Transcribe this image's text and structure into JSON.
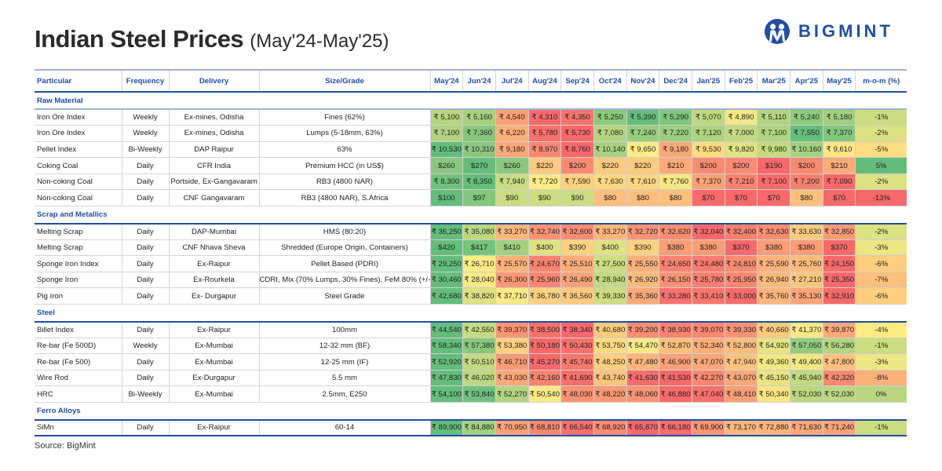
{
  "title": {
    "main": "Indian Steel Prices",
    "sub": "(May'24-May'25)"
  },
  "logo": {
    "text": "BIGMINT",
    "color": "#1f4ea3"
  },
  "colors": {
    "low": "#f8696b",
    "mid": "#ffeb84",
    "high": "#63be7b",
    "header_text": "#1f4ea3"
  },
  "columns": [
    "Particular",
    "Frequency",
    "Delivery",
    "Size/Grade",
    "May'24",
    "Jun'24",
    "Jul'24",
    "Aug'24",
    "Sep'24",
    "Oct'24",
    "Nov'24",
    "Dec'24",
    "Jan'25",
    "Feb'25",
    "Mar'25",
    "Apr'25",
    "May'25",
    "m-o-m (%)"
  ],
  "sections": [
    {
      "name": "Raw Material",
      "rows": [
        {
          "particular": "Iron Ore Index",
          "frequency": "Weekly",
          "delivery": "Ex-mines, Odisha",
          "grade": "Fines (62%)",
          "currency": "₹",
          "values": [
            5100,
            5160,
            4540,
            4310,
            4350,
            5250,
            5390,
            5290,
            5070,
            4890,
            5110,
            5240,
            5180
          ],
          "mom": -1
        },
        {
          "particular": "Iron Ore Index",
          "frequency": "Weekly",
          "delivery": "Ex-mines, Odisha",
          "grade": "Lumps (5-18mm, 63%)",
          "currency": "₹",
          "values": [
            7100,
            7360,
            6220,
            5780,
            5730,
            7080,
            7240,
            7220,
            7120,
            7000,
            7100,
            7550,
            7370
          ],
          "mom": -2
        },
        {
          "particular": "Pellet Index",
          "frequency": "Bi-Weekly",
          "delivery": "DAP Raipur",
          "grade": "63%",
          "currency": "₹",
          "values": [
            10530,
            10310,
            9180,
            8970,
            8760,
            10140,
            9650,
            9180,
            9530,
            9820,
            9980,
            10160,
            9610
          ],
          "mom": -5
        },
        {
          "particular": "Coking Coal",
          "frequency": "Daily",
          "delivery": "CFR India",
          "grade": "Premium HCC (in US$)",
          "currency": "$",
          "values": [
            260,
            270,
            260,
            220,
            200,
            220,
            220,
            210,
            200,
            200,
            190,
            200,
            210
          ],
          "mom": 5
        },
        {
          "particular": "Non-coking Coal",
          "frequency": "Daily",
          "delivery": "Portside, Ex-Gangavaram",
          "grade": "RB3 (4800 NAR)",
          "currency": "₹",
          "values": [
            8300,
            8350,
            7940,
            7720,
            7590,
            7630,
            7610,
            7760,
            7370,
            7210,
            7100,
            7200,
            7090
          ],
          "mom": -2
        },
        {
          "particular": "Non-coking Coal",
          "frequency": "Daily",
          "delivery": "CNF Gangavaram",
          "grade": "RB3 (4800 NAR), S.Africa",
          "currency": "$",
          "values": [
            100,
            97,
            90,
            90,
            90,
            80,
            80,
            80,
            70,
            70,
            70,
            80,
            70
          ],
          "mom": -13
        }
      ]
    },
    {
      "name": "Scrap and Metallics",
      "rows": [
        {
          "particular": "Melting Scrap",
          "frequency": "Daily",
          "delivery": "DAP-Mumbai",
          "grade": "HMS (80:20)",
          "currency": "₹",
          "values": [
            36250,
            35080,
            33270,
            32740,
            32600,
            33270,
            32720,
            32620,
            32040,
            32400,
            32630,
            33630,
            32850
          ],
          "mom": -2
        },
        {
          "particular": "Melting Scrap",
          "frequency": "Daily",
          "delivery": "CNF Nhava Sheva",
          "grade": "Shredded (Europe Origin, Containers)",
          "currency": "$",
          "values": [
            420,
            417,
            410,
            400,
            390,
            400,
            390,
            380,
            380,
            370,
            380,
            380,
            370
          ],
          "mom": -3
        },
        {
          "particular": "Sponge Iron Index",
          "frequency": "Daily",
          "delivery": "Ex-Raipur",
          "grade": "Pellet Based (PDRI)",
          "currency": "₹",
          "values": [
            29250,
            26710,
            25570,
            24670,
            25510,
            27500,
            25550,
            24650,
            24480,
            24810,
            25590,
            25760,
            24150
          ],
          "mom": -6
        },
        {
          "particular": "Sponge Iron",
          "frequency": "Daily",
          "delivery": "Ex-Rourkela",
          "grade": "CDRI, Mix (70% Lumps, 30% Fines), FeM 80% (+/-1)",
          "currency": "₹",
          "values": [
            30460,
            28040,
            26300,
            25960,
            26490,
            28940,
            26920,
            26150,
            25780,
            25950,
            26940,
            27210,
            25350
          ],
          "mom": -7
        },
        {
          "particular": "Pig Iron",
          "frequency": "Daily",
          "delivery": "Ex- Durgapur",
          "grade": "Steel Grade",
          "currency": "₹",
          "values": [
            42680,
            38820,
            37710,
            36780,
            36560,
            39330,
            35360,
            33280,
            33410,
            33000,
            35760,
            35130,
            32910
          ],
          "mom": -6
        }
      ]
    },
    {
      "name": "Steel",
      "rows": [
        {
          "particular": "Billet Index",
          "frequency": "Daily",
          "delivery": "Ex-Raipur",
          "grade": "100mm",
          "currency": "₹",
          "values": [
            44540,
            42550,
            39370,
            38500,
            38340,
            40680,
            39200,
            38930,
            39070,
            39330,
            40660,
            41370,
            39870
          ],
          "mom": -4
        },
        {
          "particular": "Re-bar (Fe 500D)",
          "frequency": "Weekly",
          "delivery": "Ex-Mumbai",
          "grade": "12-32 mm (BF)",
          "currency": "₹",
          "values": [
            58340,
            57380,
            53380,
            50180,
            50430,
            53750,
            54470,
            52870,
            52340,
            52800,
            54920,
            57050,
            56280
          ],
          "mom": -1
        },
        {
          "particular": "Re-bar (Fe 500)",
          "frequency": "Daily",
          "delivery": "Ex-Mumbai",
          "grade": "12-25 mm (IF)",
          "currency": "₹",
          "values": [
            52920,
            50510,
            46710,
            45270,
            45740,
            48250,
            47480,
            46900,
            47070,
            47940,
            49360,
            49400,
            47800
          ],
          "mom": -3
        },
        {
          "particular": "Wire Rod",
          "frequency": "Daily",
          "delivery": "Ex-Durgapur",
          "grade": "5.5 mm",
          "currency": "₹",
          "values": [
            47830,
            46020,
            43030,
            42160,
            41690,
            43740,
            41630,
            41530,
            42270,
            43070,
            45150,
            45940,
            42320
          ],
          "mom": -8
        },
        {
          "particular": "HRC",
          "frequency": "Bi-Weekly",
          "delivery": "Ex-Mumbai",
          "grade": "2.5mm, E250",
          "currency": "₹",
          "values": [
            54100,
            53840,
            52270,
            50540,
            48030,
            48220,
            48060,
            46880,
            47040,
            48410,
            50340,
            52030,
            52030
          ],
          "mom": 0
        }
      ]
    },
    {
      "name": "Ferro Alloys",
      "rows": [
        {
          "particular": "SiMn",
          "frequency": "Daily",
          "delivery": "Ex-Raipur",
          "grade": "60-14",
          "currency": "₹",
          "values": [
            89900,
            84880,
            70950,
            68810,
            66540,
            68920,
            65870,
            66180,
            69900,
            73170,
            72880,
            71630,
            71240
          ],
          "mom": -1
        }
      ]
    }
  ],
  "source": "Source: BigMint"
}
